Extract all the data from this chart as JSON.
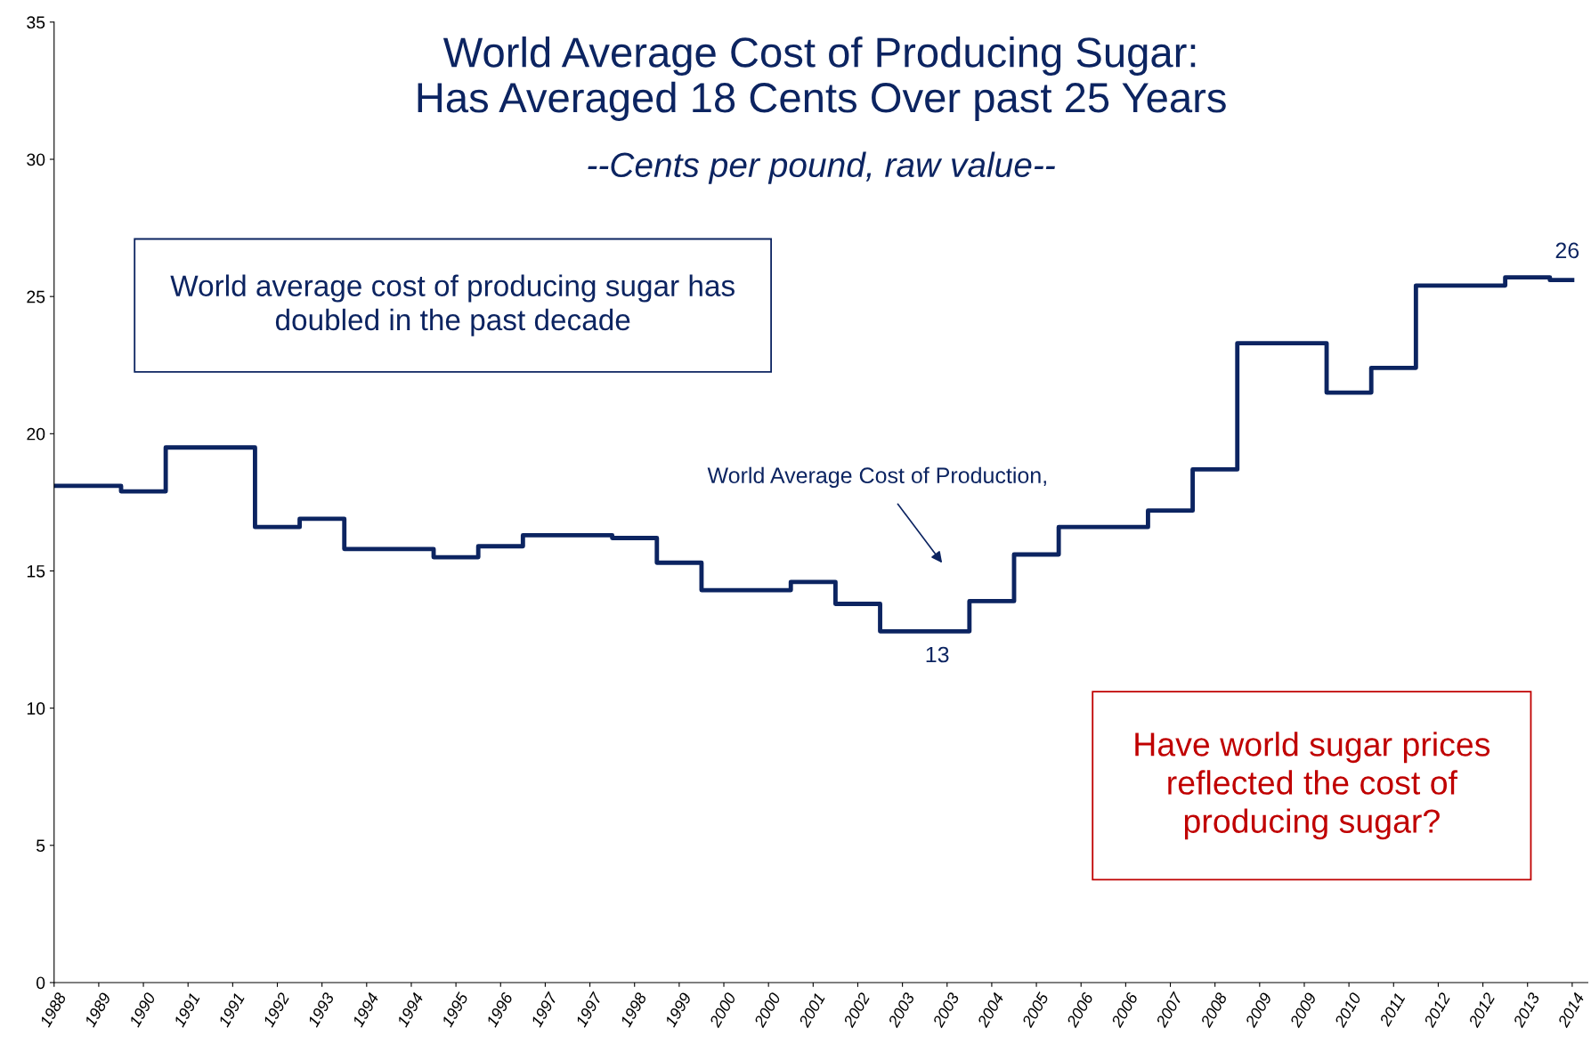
{
  "chart_data": {
    "type": "step",
    "title": "World Average Cost of Producing Sugar:\nHas Averaged 18 Cents Over past 25 Years",
    "subtitle": "--Cents per pound, raw value--",
    "categories": [
      "1988",
      "1989",
      "1990",
      "1991",
      "1991",
      "1992",
      "1993",
      "1994",
      "1994",
      "1995",
      "1996",
      "1997",
      "1997",
      "1998",
      "1999",
      "2000",
      "2000",
      "2001",
      "2002",
      "2003",
      "2003",
      "2004",
      "2005",
      "2006",
      "2006",
      "2007",
      "2008",
      "2009",
      "2009",
      "2010",
      "2011",
      "2012",
      "2012",
      "2013",
      "2014"
    ],
    "series": [
      {
        "color": "#0c2461",
        "values": [
          18.1,
          18.1,
          17.9,
          19.5,
          19.5,
          16.6,
          16.9,
          15.8,
          15.8,
          15.5,
          15.9,
          16.3,
          16.3,
          16.2,
          15.3,
          14.3,
          14.3,
          14.6,
          13.8,
          12.8,
          12.8,
          13.9,
          15.6,
          16.6,
          16.6,
          17.2,
          18.7,
          23.3,
          23.3,
          21.5,
          22.4,
          25.4,
          25.4,
          25.7,
          25.6
        ]
      }
    ],
    "ylim": [
      0,
      35
    ],
    "yticks": [
      0,
      5,
      10,
      15,
      20,
      25,
      30,
      35
    ],
    "grid": false,
    "legend": false,
    "annotations": [
      "World average cost of producing sugar has\ndoubled in the past decade",
      "Have world sugar prices\nreflected the cost of\nproducing sugar?",
      "World Average Cost of Production,",
      {
        "text": "13",
        "x": "2003",
        "y": 12.8
      },
      {
        "text": "26",
        "x": "2014",
        "y": 25.6
      }
    ]
  }
}
